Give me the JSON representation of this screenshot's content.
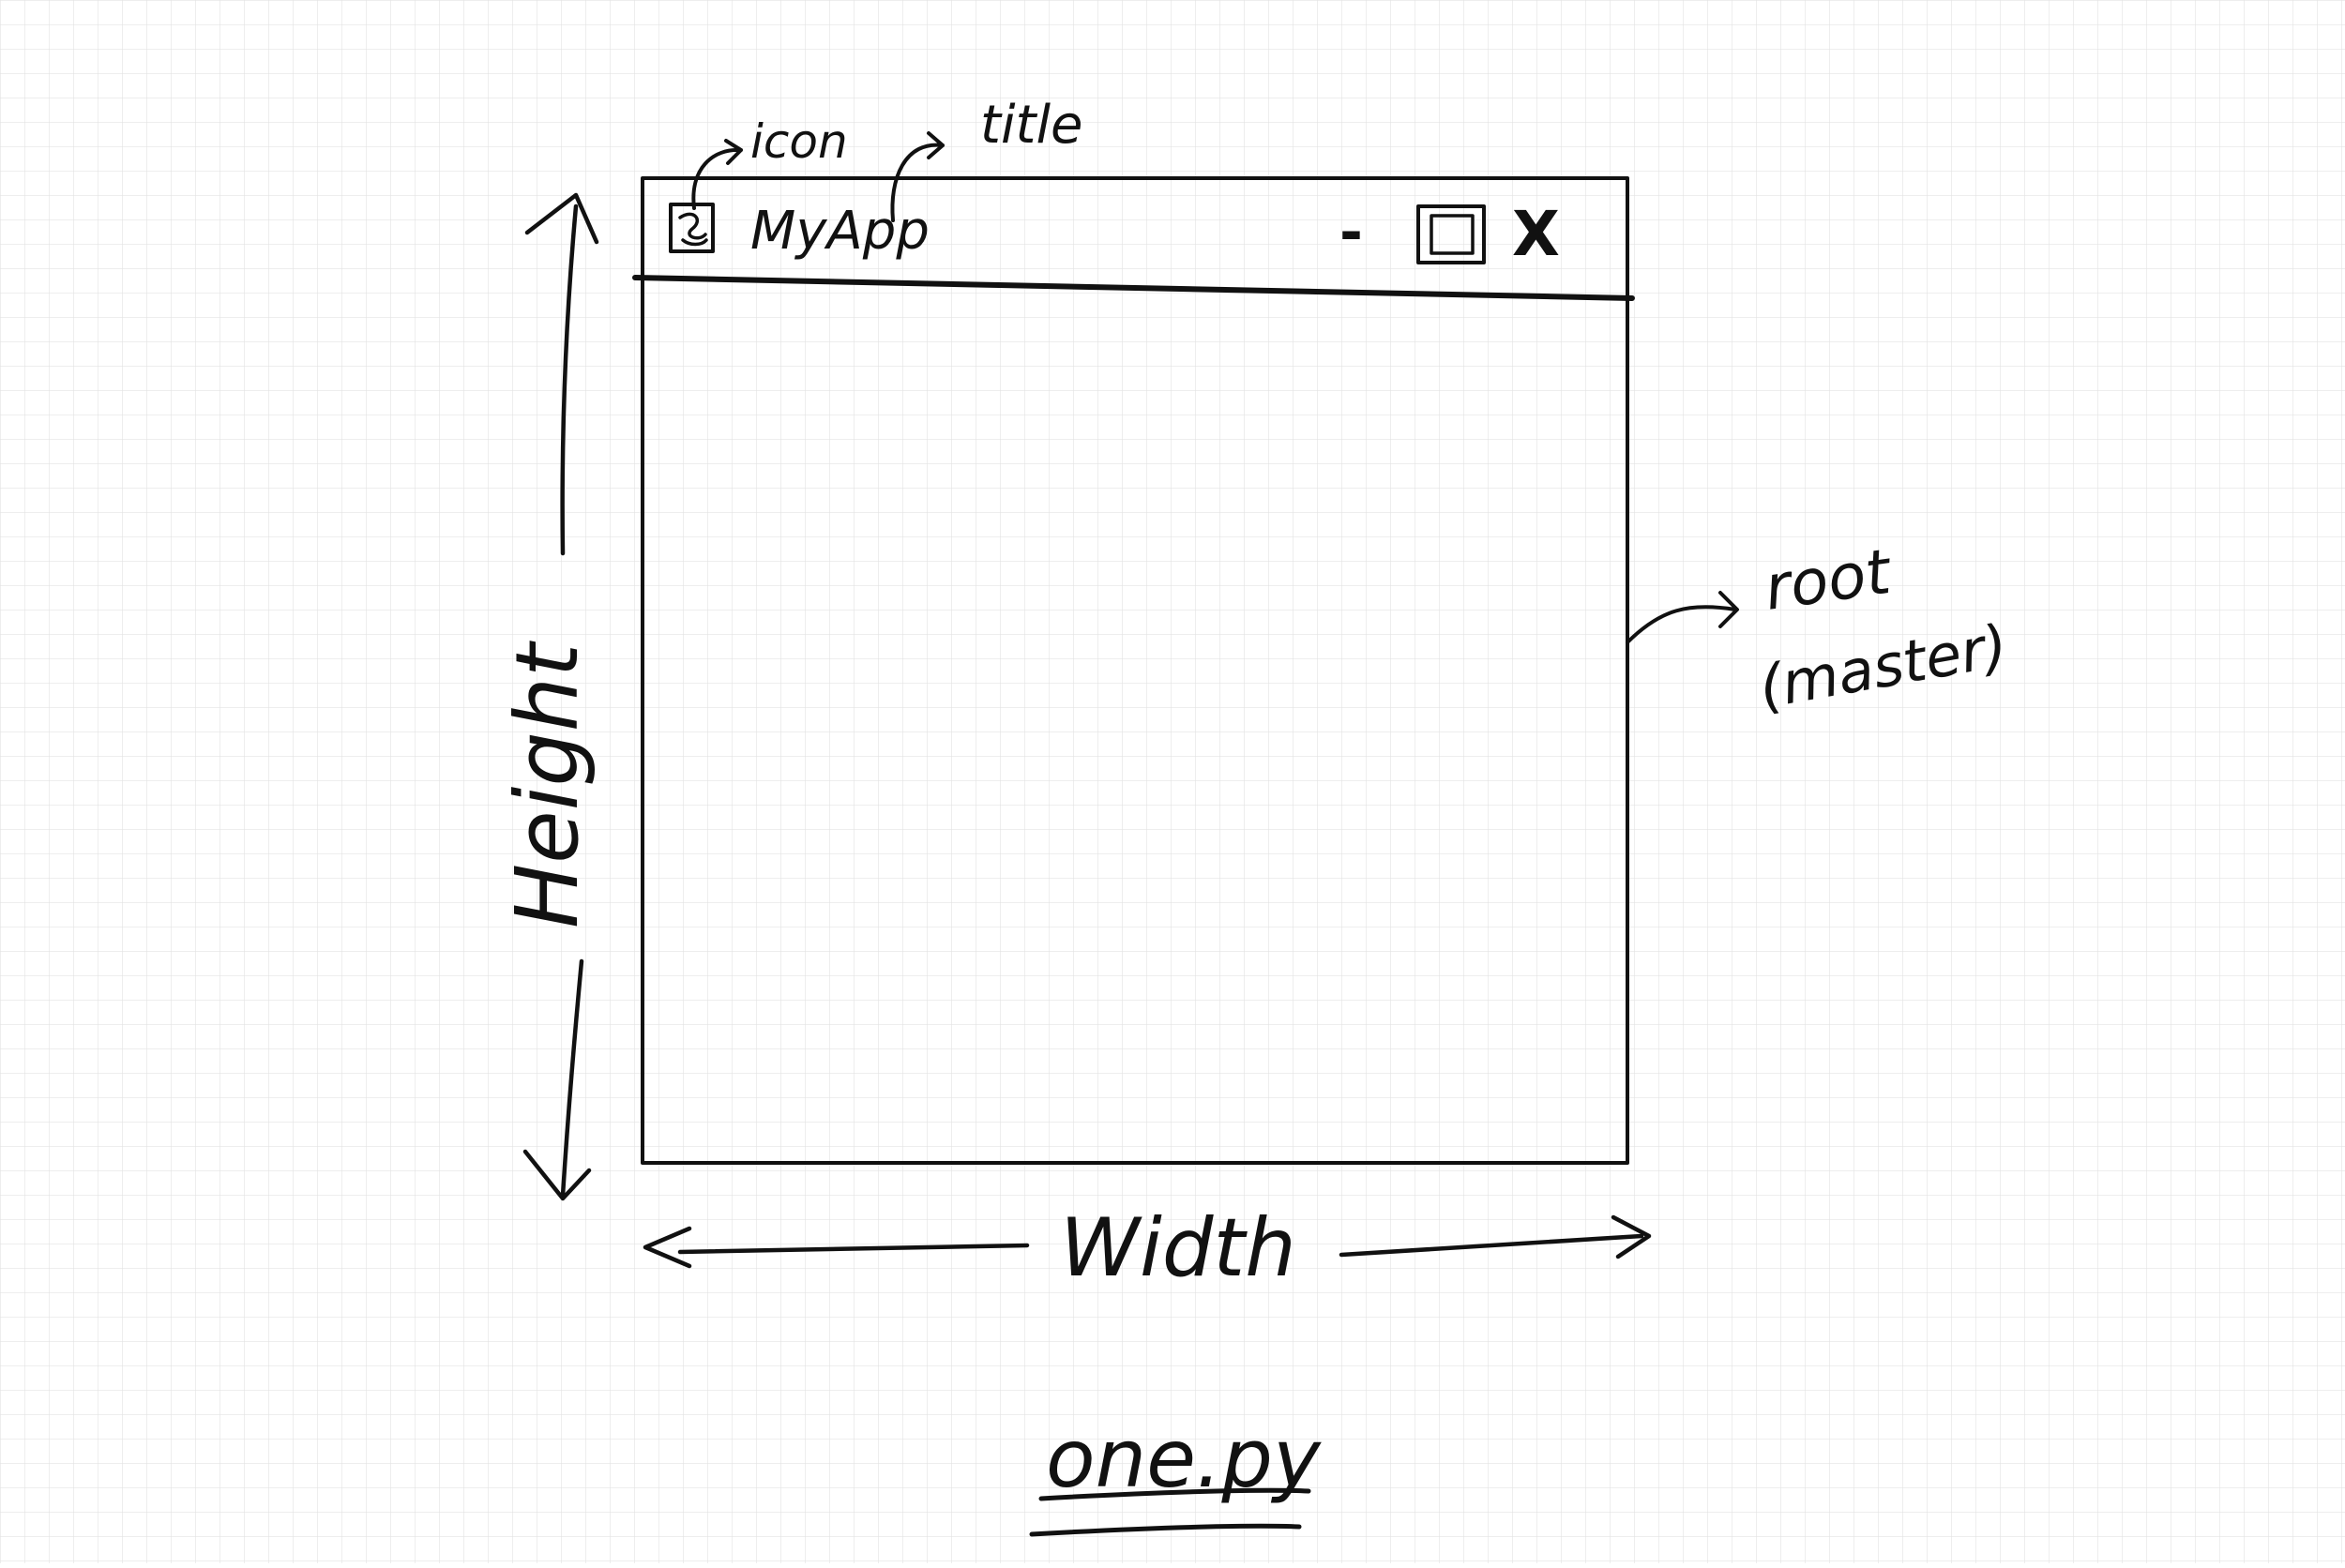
{
  "window": {
    "title": "MyApp",
    "icon": "app-icon",
    "controls": {
      "minimize": "-",
      "maximize_icon": "maximize-icon",
      "close": "X"
    }
  },
  "annotations": {
    "icon": "icon",
    "title": "title",
    "root_line1": "root",
    "root_line2": "(master)",
    "height": "Height",
    "width": "Width"
  },
  "caption": "one.py",
  "colors": {
    "ink": "#111111",
    "grid": "#e3e3e3",
    "paper": "#ffffff"
  }
}
